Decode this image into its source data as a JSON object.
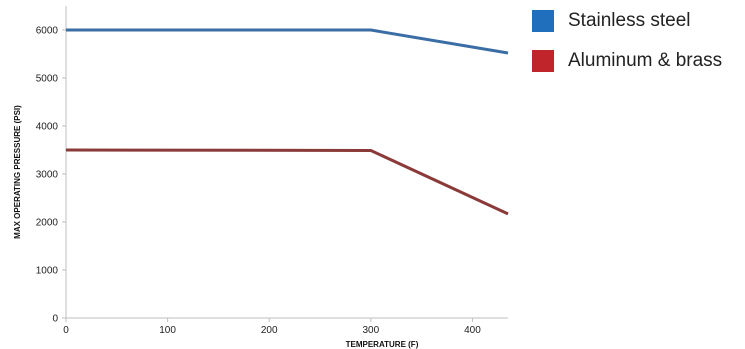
{
  "chart_data": {
    "type": "line",
    "xlabel": "TEMPERATURE (F)",
    "ylabel": "MAX OPERATING PRESSURE (PSI)",
    "xlim": [
      0,
      435
    ],
    "ylim": [
      0,
      6500
    ],
    "xticks": [
      0,
      100,
      200,
      300,
      400
    ],
    "yticks": [
      0,
      1000,
      2000,
      3000,
      4000,
      5000,
      6000
    ],
    "grid": false,
    "legend_position": "right",
    "series": [
      {
        "name": "Stainless steel",
        "color": "#3a6ea5",
        "x": [
          0,
          300,
          435
        ],
        "y": [
          6000,
          6000,
          5520
        ]
      },
      {
        "name": "Aluminum & brass",
        "color": "#8b3a3a",
        "x": [
          0,
          300,
          435
        ],
        "y": [
          3500,
          3490,
          2170
        ]
      }
    ],
    "legend": [
      {
        "label": "Stainless steel",
        "color": "#1f6fbd"
      },
      {
        "label": "Aluminum & brass",
        "color": "#c0252b"
      }
    ]
  }
}
